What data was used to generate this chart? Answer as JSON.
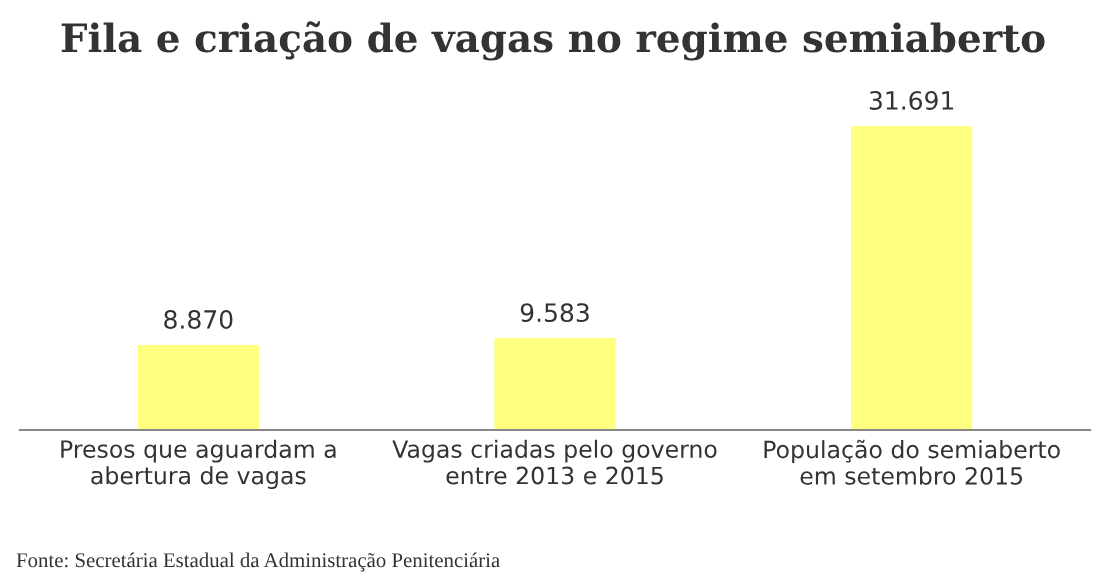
{
  "chart_data": {
    "type": "bar",
    "title": "Fila e criação de vagas no regime semiaberto",
    "categories": [
      "Presos que aguardam a\nabertura de vagas",
      "Vagas criadas pelo governo\nentre 2013 e 2015",
      "População do semiaberto\nem setembro 2015"
    ],
    "values": [
      8870,
      9583,
      31691
    ],
    "value_labels": [
      "8.870",
      "9.583",
      "31.691"
    ],
    "color": "#ffff80",
    "tick_labels": "x",
    "grid": false,
    "legend": false,
    "annotations": [
      "Fonte: Secretária Estadual da Administração Penitenciária"
    ]
  }
}
